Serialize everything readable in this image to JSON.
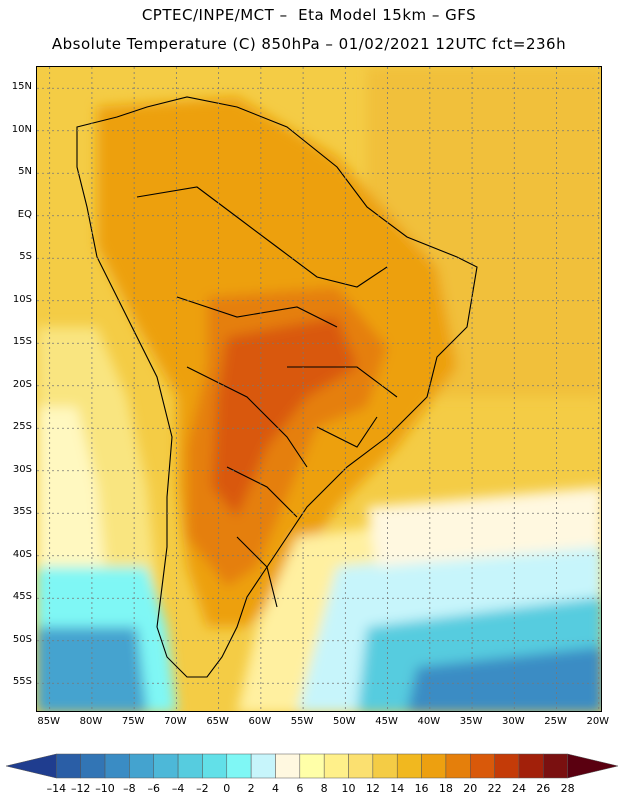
{
  "header": {
    "line1": "CPTEC/INPE/MCT –  Eta Model 15km – GFS",
    "line2": "Absolute Temperature (C) 850hPa – 01/02/2021 12UTC fct=236h"
  },
  "map": {
    "lat_labels": [
      "15N",
      "10N",
      "5N",
      "EQ",
      "5S",
      "10S",
      "15S",
      "20S",
      "25S",
      "30S",
      "35S",
      "40S",
      "45S",
      "50S",
      "55S"
    ],
    "lon_labels": [
      "85W",
      "80W",
      "75W",
      "70W",
      "65W",
      "60W",
      "55W",
      "50W",
      "45W",
      "40W",
      "35W",
      "30W",
      "25W",
      "20W"
    ],
    "lat_values": [
      15,
      10,
      5,
      0,
      -5,
      -10,
      -15,
      -20,
      -25,
      -30,
      -35,
      -40,
      -45,
      -50,
      -55
    ],
    "lon_values": [
      -85,
      -80,
      -75,
      -70,
      -65,
      -60,
      -55,
      -50,
      -45,
      -40,
      -35,
      -30,
      -25,
      -20
    ]
  },
  "legend": {
    "labels": [
      "-14",
      "-12",
      "-10",
      "-8",
      "-6",
      "-4",
      "-2",
      "0",
      "2",
      "4",
      "6",
      "8",
      "10",
      "12",
      "14",
      "16",
      "18",
      "20",
      "22",
      "24",
      "26",
      "28"
    ],
    "colors": [
      "#1f3d8f",
      "#2a5ea6",
      "#3275b5",
      "#3a8cc4",
      "#44a3cf",
      "#4db8d8",
      "#56ccdf",
      "#62e0e8",
      "#7ff7f5",
      "#c7f5fb",
      "#fff8e0",
      "#ffffa8",
      "#fff08a",
      "#fbe070",
      "#f4cc45",
      "#f1b81f",
      "#eda010",
      "#e57f0b",
      "#d9590a",
      "#c43b08",
      "#a2200a",
      "#7a1010",
      "#5a0010"
    ]
  }
}
